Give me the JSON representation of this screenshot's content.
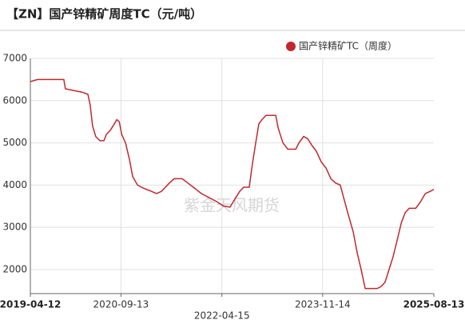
{
  "chart_data": {
    "type": "line",
    "title": "【ZN】国产锌精矿周度TC（元/吨）",
    "watermark": "紫金天风期货",
    "x": [
      "2019-04-12",
      "2019-05-23",
      "2019-10-21",
      "2019-10-30",
      "2019-12-27",
      "2020-02-03",
      "2020-03-07",
      "2020-03-20",
      "2020-04-03",
      "2020-04-21",
      "2020-05-15",
      "2020-06-07",
      "2020-06-21",
      "2020-07-14",
      "2020-08-06",
      "2020-08-20",
      "2020-09-03",
      "2020-09-17",
      "2020-10-09",
      "2020-11-01",
      "2020-11-19",
      "2020-12-17",
      "2021-01-08",
      "2021-02-05",
      "2021-03-08",
      "2021-04-05",
      "2021-05-03",
      "2021-05-26",
      "2021-06-18",
      "2021-07-15",
      "2021-08-30",
      "2021-10-01",
      "2021-11-02",
      "2021-12-18",
      "2022-02-02",
      "2022-03-20",
      "2022-04-25",
      "2022-06-01",
      "2022-07-03",
      "2022-07-26",
      "2022-08-18",
      "2022-09-19",
      "2022-10-07",
      "2022-10-26",
      "2022-11-13",
      "2022-12-01",
      "2022-12-24",
      "2023-02-18",
      "2023-03-04",
      "2023-03-31",
      "2023-04-28",
      "2023-06-13",
      "2023-07-01",
      "2023-07-28",
      "2023-08-20",
      "2023-09-12",
      "2023-10-09",
      "2023-11-06",
      "2023-12-04",
      "2023-12-31",
      "2024-01-27",
      "2024-02-23",
      "2024-03-17",
      "2024-04-09",
      "2024-05-07",
      "2024-05-30",
      "2024-06-22",
      "2024-07-15",
      "2024-08-07",
      "2024-09-22",
      "2024-10-15",
      "2024-11-06",
      "2024-11-29",
      "2024-12-22",
      "2025-01-15",
      "2025-02-07",
      "2025-03-02",
      "2025-03-25",
      "2025-05-01",
      "2025-05-28",
      "2025-06-25",
      "2025-07-22",
      "2025-08-13"
    ],
    "series": [
      {
        "name": "国产锌精矿TC（周度）",
        "color": "#c0282d",
        "values": [
          6450,
          6500,
          6500,
          6280,
          6230,
          6200,
          6150,
          5900,
          5400,
          5150,
          5050,
          5050,
          5200,
          5300,
          5450,
          5550,
          5500,
          5200,
          5000,
          4600,
          4200,
          4000,
          3950,
          3900,
          3850,
          3800,
          3850,
          3950,
          4050,
          4150,
          4150,
          4050,
          3950,
          3800,
          3700,
          3600,
          3500,
          3480,
          3700,
          3850,
          3950,
          3950,
          4500,
          5000,
          5450,
          5550,
          5650,
          5650,
          5350,
          5000,
          4850,
          4850,
          5000,
          5150,
          5100,
          4950,
          4800,
          4550,
          4400,
          4150,
          4050,
          4000,
          3650,
          3300,
          2900,
          2400,
          2000,
          1550,
          1550,
          1550,
          1600,
          1700,
          2000,
          2300,
          2700,
          3100,
          3350,
          3450,
          3450,
          3600,
          3800,
          3850,
          3900
        ]
      }
    ],
    "xlim": [
      "2019-04-12",
      "2025-08-13"
    ],
    "xticks": [
      "2019-04-12",
      "2020-09-13",
      "2022-04-15",
      "2023-11-14",
      "2025-08-13"
    ],
    "ylim": [
      1430,
      7000
    ],
    "yticks": [
      2000,
      3000,
      4000,
      5000,
      6000,
      7000
    ],
    "grid": true,
    "legend": "top-right"
  }
}
